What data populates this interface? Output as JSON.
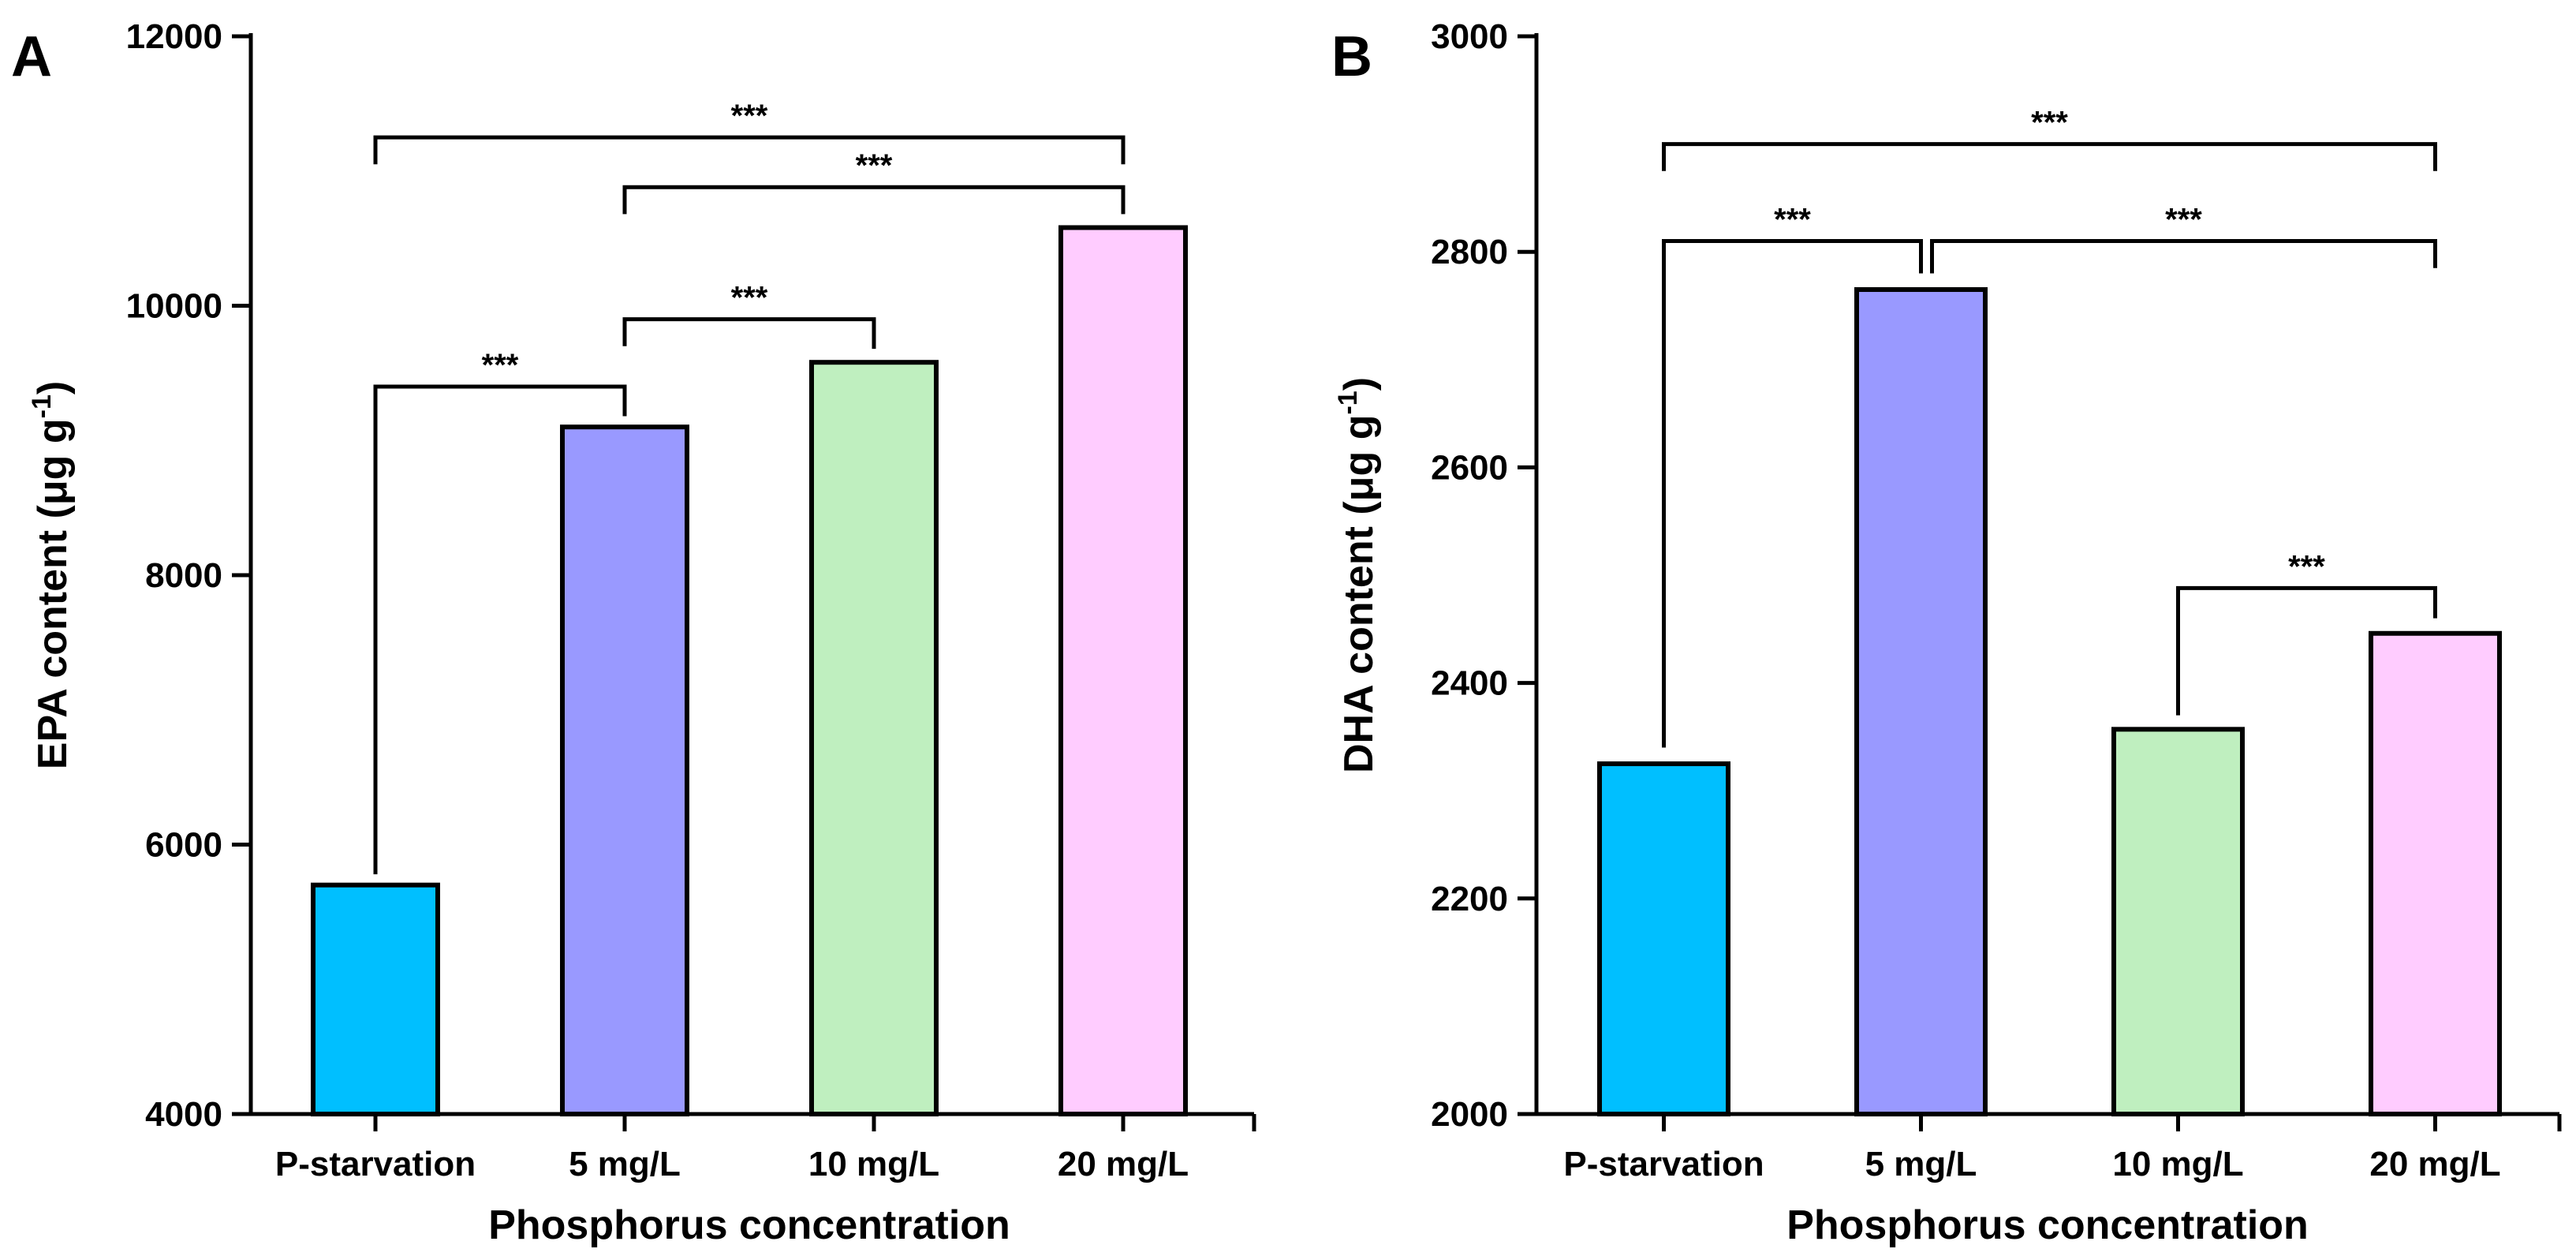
{
  "chart_data": [
    {
      "type": "bar",
      "panel_label": "A",
      "categories": [
        "P-starvation",
        "5 mg/L",
        "10 mg/L",
        "20 mg/L"
      ],
      "values": [
        5700,
        9100,
        9580,
        10580
      ],
      "colors": [
        "#00bfff",
        "#9999ff",
        "#bfefbf",
        "#ffccff"
      ],
      "xlabel": "Phosphorus concentration",
      "ylabel": "EPA content (μg g",
      "ylabel_sup": "-1",
      "ylabel_end": ")",
      "ylim": [
        4000,
        12000
      ],
      "yticks": [
        4000,
        6000,
        8000,
        10000,
        12000
      ],
      "grid": false,
      "legend": "none",
      "annotations": [
        {
          "from": 0,
          "to": 1,
          "y": 9400,
          "text": "***",
          "drop_from": 5780,
          "drop_to": 9180
        },
        {
          "from": 1,
          "to": 2,
          "y": 9900,
          "text": "***",
          "drop_from": 9700,
          "drop_to": 9680
        },
        {
          "from": 1,
          "to": 3,
          "y": 10880,
          "text": "***",
          "drop_from": 10680,
          "drop_to": 10680
        },
        {
          "from": 0,
          "to": 3,
          "y": 11250,
          "text": "***",
          "drop_from": 11050,
          "drop_to": 11050
        }
      ]
    },
    {
      "type": "bar",
      "panel_label": "B",
      "categories": [
        "P-starvation",
        "5 mg/L",
        "10 mg/L",
        "20 mg/L"
      ],
      "values": [
        2325,
        2765,
        2357,
        2446
      ],
      "colors": [
        "#00bfff",
        "#9999ff",
        "#bfefbf",
        "#ffccff"
      ],
      "xlabel": "Phosphorus concentration",
      "ylabel": "DHA content (μg g",
      "ylabel_sup": "-1",
      "ylabel_end": ")",
      "ylim": [
        2000,
        3000
      ],
      "yticks": [
        2000,
        2200,
        2400,
        2600,
        2800,
        3000
      ],
      "grid": false,
      "legend": "none",
      "annotations": [
        {
          "from": 0,
          "to": 1,
          "y": 2810,
          "text": "***",
          "drop_from": 2340,
          "drop_to": 2780
        },
        {
          "from": 1,
          "to": 3,
          "y": 2810,
          "text": "***",
          "drop_from": 2780,
          "drop_to": 2785
        },
        {
          "from": 2,
          "to": 3,
          "y": 2488,
          "text": "***",
          "drop_from": 2370,
          "drop_to": 2460
        },
        {
          "from": 0,
          "to": 3,
          "y": 2900,
          "text": "***",
          "drop_from": 2875,
          "drop_to": 2875
        }
      ]
    }
  ]
}
